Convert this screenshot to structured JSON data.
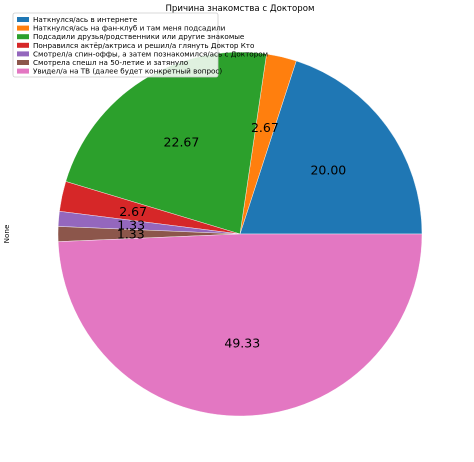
{
  "chart_data": {
    "type": "pie",
    "title": "Причина знакомства с Доктором",
    "ylabel": "None",
    "legend_position": "top-left",
    "slices": [
      {
        "label": "Наткнулся/ась в интернете",
        "value": 20.0,
        "display": "20.00",
        "color": "#1f77b4"
      },
      {
        "label": "Наткнулся/ась на фан-клуб и там меня подсадили",
        "value": 2.67,
        "display": "2.67",
        "color": "#ff7f0e"
      },
      {
        "label": "Подсадили друзья/родственники или другие знакомые",
        "value": 22.67,
        "display": "22.67",
        "color": "#2ca02c"
      },
      {
        "label": "Понравился актёр/актриса и решил/а глянуть Доктор Кто",
        "value": 2.67,
        "display": "2.67",
        "color": "#d62728"
      },
      {
        "label": "Смотрел/а спин-оффы, а затем познакомился/ась с Доктором",
        "value": 1.33,
        "display": "1.33",
        "color": "#9467bd"
      },
      {
        "label": "Смотрела спешл на 50-летие и затянуло",
        "value": 1.33,
        "display": "1.33",
        "color": "#8c564b"
      },
      {
        "label": "Увидел/а на ТВ (далее будет конкретный вопрос)",
        "value": 49.33,
        "display": "49.33",
        "color": "#e377c2"
      }
    ]
  }
}
